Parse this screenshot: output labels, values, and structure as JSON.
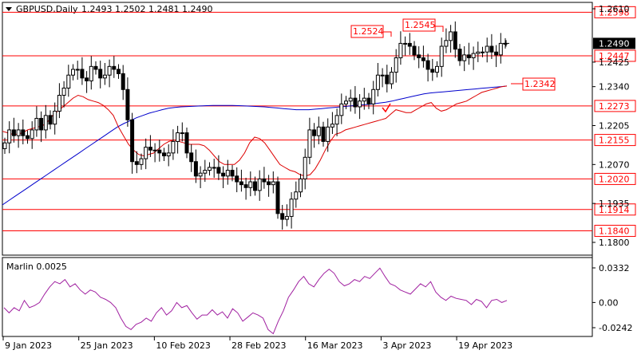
{
  "header": {
    "symbol": "GBPUSD,Daily",
    "ohlc": "1.2493 1.2502 1.2481 1.2490"
  },
  "main_axis": {
    "ticks": [
      "1.2610",
      "1.2425",
      "1.2340",
      "1.2205",
      "1.2070",
      "1.1935",
      "1.1800"
    ],
    "tick_values": [
      1.261,
      1.2425,
      1.234,
      1.2205,
      1.207,
      1.1935,
      1.18
    ]
  },
  "price_lines": [
    {
      "value": 1.2598,
      "label": "1.2598"
    },
    {
      "value": 1.2447,
      "label": "1.2447"
    },
    {
      "value": 1.2273,
      "label": "1.2273"
    },
    {
      "value": 1.2155,
      "label": "1.2155"
    },
    {
      "value": 1.202,
      "label": "1.2020"
    },
    {
      "value": 1.1914,
      "label": "1.1914"
    },
    {
      "value": 1.184,
      "label": "1.1840"
    }
  ],
  "current_price": {
    "value": 1.249,
    "label": "1.2490"
  },
  "annotations": [
    {
      "label": "1.2524",
      "value": 1.2524,
      "bar": 70
    },
    {
      "label": "1.2545",
      "value": 1.2545,
      "bar": 79
    },
    {
      "label": "1.2342",
      "value": 1.2342,
      "bar": 90
    }
  ],
  "x_axis": {
    "labels": [
      {
        "text": "9 Jan 2023",
        "bar": 0
      },
      {
        "text": "25 Jan 2023",
        "bar": 12
      },
      {
        "text": "10 Feb 2023",
        "bar": 24
      },
      {
        "text": "28 Feb 2023",
        "bar": 36
      },
      {
        "text": "16 Mar 2023",
        "bar": 48
      },
      {
        "text": "3 Apr 2023",
        "bar": 60
      },
      {
        "text": "19 Apr 2023",
        "bar": 72
      }
    ]
  },
  "indicator": {
    "title": "Marlin 0.0025",
    "ticks": [
      "0.0332",
      "0.00",
      "-0.0242"
    ],
    "tick_values": [
      0.0332,
      0.0,
      -0.0242
    ],
    "values": [
      -0.005,
      -0.01,
      -0.005,
      -0.008,
      0.002,
      -0.005,
      -0.003,
      0.0,
      0.008,
      0.015,
      0.02,
      0.018,
      0.022,
      0.015,
      0.018,
      0.012,
      0.008,
      0.012,
      0.01,
      0.005,
      0.003,
      0.0,
      -0.005,
      -0.015,
      -0.023,
      -0.026,
      -0.021,
      -0.019,
      -0.015,
      -0.018,
      -0.01,
      -0.005,
      -0.012,
      -0.008,
      0.0,
      -0.005,
      -0.003,
      -0.01,
      -0.016,
      -0.012,
      -0.012,
      -0.007,
      -0.012,
      -0.009,
      -0.015,
      -0.006,
      -0.01,
      -0.018,
      -0.014,
      -0.01,
      -0.012,
      -0.015,
      -0.026,
      -0.03,
      -0.018,
      -0.008,
      0.005,
      0.012,
      0.02,
      0.025,
      0.018,
      0.015,
      0.022,
      0.028,
      0.032,
      0.028,
      0.02,
      0.016,
      0.018,
      0.022,
      0.02,
      0.025,
      0.023,
      0.028,
      0.033,
      0.025,
      0.018,
      0.016,
      0.012,
      0.01,
      0.008,
      0.013,
      0.018,
      0.015,
      0.02,
      0.01,
      0.005,
      0.002,
      0.006,
      0.004,
      0.003,
      0.002,
      -0.002,
      0.003,
      0.001,
      -0.005,
      0.002,
      0.003,
      0.0,
      0.002
    ]
  },
  "chart_data": {
    "type": "candlestick",
    "title": "GBPUSD,Daily",
    "xlabel": "",
    "ylabel": "",
    "ylim": [
      1.1765,
      1.2625
    ],
    "x_tick_labels": [
      "9 Jan 2023",
      "25 Jan 2023",
      "10 Feb 2023",
      "28 Feb 2023",
      "16 Mar 2023",
      "3 Apr 2023",
      "19 Apr 2023"
    ],
    "grid": false,
    "candles_close": [
      1.2145,
      1.219,
      1.217,
      1.219,
      1.217,
      1.216,
      1.219,
      1.223,
      1.219,
      1.224,
      1.221,
      1.2255,
      1.231,
      1.2335,
      1.238,
      1.24,
      1.24,
      1.237,
      1.236,
      1.241,
      1.24,
      1.237,
      1.238,
      1.241,
      1.24,
      1.2385,
      1.233,
      1.2225,
      1.208,
      1.207,
      1.209,
      1.213,
      1.212,
      1.212,
      1.211,
      1.21,
      1.211,
      1.215,
      1.218,
      1.218,
      1.211,
      1.208,
      1.203,
      1.204,
      1.205,
      1.206,
      1.206,
      1.204,
      1.203,
      1.205,
      1.203,
      1.201,
      1.2,
      1.199,
      1.201,
      1.198,
      1.202,
      1.201,
      1.2,
      1.201,
      1.19,
      1.188,
      1.189,
      1.195,
      1.1975,
      1.202,
      1.2095,
      1.219,
      1.217,
      1.22,
      1.215,
      1.22,
      1.221,
      1.224,
      1.228,
      1.229,
      1.23,
      1.227,
      1.229,
      1.23,
      1.228,
      1.233,
      1.238,
      1.238,
      1.235,
      1.239,
      1.244,
      1.249,
      1.249,
      1.248,
      1.245,
      1.244,
      1.243,
      1.24,
      1.239,
      1.241,
      1.248,
      1.25,
      1.253,
      1.247,
      1.243,
      1.245,
      1.244,
      1.2455,
      1.246,
      1.246,
      1.248,
      1.246,
      1.245,
      1.249,
      1.249
    ],
    "ma_fast": [
      1.2185,
      1.218,
      1.2175,
      1.2175,
      1.218,
      1.219,
      1.2195,
      1.22,
      1.2205,
      1.222,
      1.224,
      1.2255,
      1.227,
      1.2285,
      1.23,
      1.231,
      1.2305,
      1.2295,
      1.229,
      1.2285,
      1.2275,
      1.226,
      1.224,
      1.22,
      1.217,
      1.214,
      1.212,
      1.2105,
      1.21,
      1.2105,
      1.211,
      1.2125,
      1.214,
      1.215,
      1.2155,
      1.215,
      1.2145,
      1.214,
      1.214,
      1.214,
      1.2135,
      1.212,
      1.21,
      1.208,
      1.207,
      1.207,
      1.207,
      1.2085,
      1.211,
      1.2145,
      1.2165,
      1.216,
      1.2145,
      1.212,
      1.2095,
      1.207,
      1.206,
      1.205,
      1.2045,
      1.2035,
      1.203,
      1.2035,
      1.2055,
      1.2085,
      1.212,
      1.215,
      1.2175,
      1.218,
      1.219,
      1.2195,
      1.22,
      1.2205,
      1.221,
      1.2215,
      1.222,
      1.2225,
      1.223,
      1.2245,
      1.226,
      1.2255,
      1.225,
      1.225,
      1.226,
      1.227,
      1.228,
      1.2285,
      1.2265,
      1.2255,
      1.226,
      1.227,
      1.228,
      1.2285,
      1.229,
      1.23,
      1.231,
      1.232,
      1.2325,
      1.233,
      1.2335,
      1.234,
      1.2342
    ],
    "ma_slow": [
      1.193,
      1.1945,
      1.196,
      1.1975,
      1.199,
      1.2005,
      1.202,
      1.2035,
      1.205,
      1.2065,
      1.208,
      1.2095,
      1.211,
      1.2125,
      1.214,
      1.2155,
      1.217,
      1.2185,
      1.22,
      1.2212,
      1.2222,
      1.2232,
      1.224,
      1.2248,
      1.2254,
      1.226,
      1.2265,
      1.2268,
      1.227,
      1.2271,
      1.2272,
      1.2273,
      1.2274,
      1.2275,
      1.2275,
      1.2275,
      1.2275,
      1.2274,
      1.2273,
      1.2272,
      1.2271,
      1.227,
      1.2268,
      1.2266,
      1.2264,
      1.2262,
      1.226,
      1.226,
      1.226,
      1.2262,
      1.2264,
      1.2266,
      1.2268,
      1.227,
      1.2272,
      1.2274,
      1.2276,
      1.2278,
      1.228,
      1.2283,
      1.2286,
      1.229,
      1.2295,
      1.23,
      1.2305,
      1.231,
      1.2315,
      1.2318,
      1.232,
      1.2322,
      1.2324,
      1.2326,
      1.2328,
      1.233,
      1.2332,
      1.2334,
      1.2336,
      1.2338,
      1.234,
      1.2342
    ]
  }
}
